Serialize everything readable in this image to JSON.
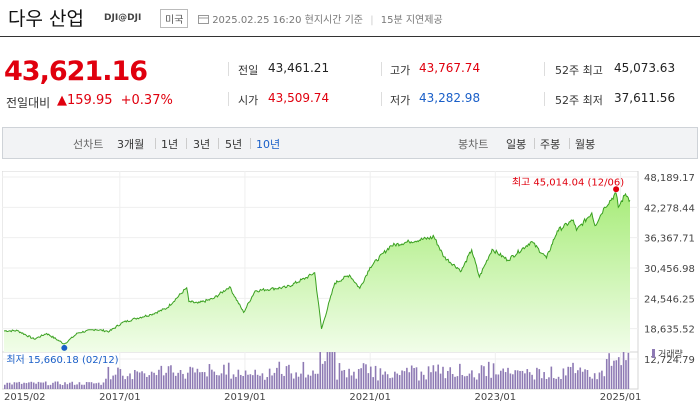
{
  "header": {
    "title": "다우 산업",
    "code": "DJI@DJI",
    "country": "미국",
    "time_info": "2025.02.25 16:20 현지시간 기준",
    "delay_info": "15분 지연제공"
  },
  "quote": {
    "price": "43,621.16",
    "change_label": "전일대비",
    "change_arrow": "▲",
    "change_value": "159.95",
    "change_percent": "+0.37%"
  },
  "stats": {
    "prev_label": "전일",
    "prev_value": "43,461.21",
    "open_label": "시가",
    "open_value": "43,509.74",
    "high_label": "고가",
    "high_value": "43,767.74",
    "low_label": "저가",
    "low_value": "43,282.98",
    "w52_high_label": "52주 최고",
    "w52_high_value": "45,073.63",
    "w52_low_label": "52주 최저",
    "w52_low_value": "37,611.56"
  },
  "tabs": {
    "line_label": "선차트",
    "line_periods": [
      "3개월",
      "1년",
      "3년",
      "5년",
      "10년"
    ],
    "active_period": "10년",
    "candle_label": "봉차트",
    "candle_periods": [
      "일봉",
      "주봉",
      "월봉"
    ]
  },
  "colors": {
    "up": "#e0000e",
    "down": "#1a5fc8",
    "area_fill": "#a8ec7a",
    "area_line": "#3aa020",
    "volume": "#8e7ab4"
  },
  "chart_data": {
    "type": "area",
    "x_range": [
      "2015/02",
      "2025/02"
    ],
    "x_tick_labels": [
      "2015/02",
      "2017/01",
      "2019/01",
      "2021/01",
      "2023/01",
      "2025/01"
    ],
    "y_tick_labels": [
      "48,189.17",
      "42,278.44",
      "36,367.71",
      "30,456.98",
      "24,546.25",
      "18,635.52",
      "12,724.79"
    ],
    "ylim": [
      12724.79,
      48189.17
    ],
    "high_annotation": "최고 45,014.04 (12/06)",
    "low_annotation": "최저 15,660.18 (02/12)",
    "volume_legend": "거래량",
    "series": [
      {
        "points": [
          [
            "2015-02-25",
            18200
          ],
          [
            "2015-05-15",
            18250
          ],
          [
            "2015-08-20",
            16600
          ],
          [
            "2015-11-01",
            17700
          ],
          [
            "2016-02-12",
            15660.18
          ],
          [
            "2016-05-01",
            17800
          ],
          [
            "2016-08-10",
            18500
          ],
          [
            "2016-11-01",
            18100
          ],
          [
            "2017-01-15",
            19800
          ],
          [
            "2017-04-01",
            20600
          ],
          [
            "2017-07-01",
            21400
          ],
          [
            "2017-10-01",
            22600
          ],
          [
            "2018-01-26",
            26600
          ],
          [
            "2018-02-08",
            23900
          ],
          [
            "2018-04-01",
            23600
          ],
          [
            "2018-07-01",
            24500
          ],
          [
            "2018-10-03",
            26800
          ],
          [
            "2018-12-24",
            21800
          ],
          [
            "2019-03-01",
            26000
          ],
          [
            "2019-06-01",
            26400
          ],
          [
            "2019-09-01",
            26700
          ],
          [
            "2019-12-27",
            28600
          ],
          [
            "2020-02-12",
            29550
          ],
          [
            "2020-03-23",
            18600
          ],
          [
            "2020-06-08",
            27500
          ],
          [
            "2020-09-02",
            29100
          ],
          [
            "2020-11-01",
            26500
          ],
          [
            "2020-12-31",
            30600
          ],
          [
            "2021-05-01",
            34800
          ],
          [
            "2021-08-16",
            35600
          ],
          [
            "2021-12-31",
            36400
          ],
          [
            "2022-01-04",
            36800
          ],
          [
            "2022-03-08",
            32600
          ],
          [
            "2022-06-17",
            29900
          ],
          [
            "2022-08-16",
            34000
          ],
          [
            "2022-09-30",
            28700
          ],
          [
            "2022-12-13",
            34100
          ],
          [
            "2023-03-15",
            32000
          ],
          [
            "2023-07-31",
            35600
          ],
          [
            "2023-10-27",
            32400
          ],
          [
            "2023-12-29",
            37700
          ],
          [
            "2024-03-31",
            39800
          ],
          [
            "2024-04-19",
            37800
          ],
          [
            "2024-07-17",
            41200
          ],
          [
            "2024-08-05",
            38700
          ],
          [
            "2024-09-30",
            42300
          ],
          [
            "2024-12-06",
            45014.04
          ],
          [
            "2024-12-19",
            42300
          ],
          [
            "2025-01-30",
            44900
          ],
          [
            "2025-02-10",
            44400
          ],
          [
            "2025-02-25",
            43621.16
          ]
        ]
      }
    ]
  }
}
